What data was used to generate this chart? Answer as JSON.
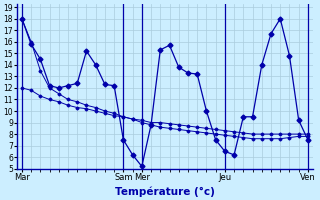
{
  "background_color": "#cceeff",
  "grid_color": "#aaccdd",
  "line_color": "#0000aa",
  "xlabel": "Température (°c)",
  "ylim": [
    5,
    19
  ],
  "yticks": [
    5,
    6,
    7,
    8,
    9,
    10,
    11,
    12,
    13,
    14,
    15,
    16,
    17,
    18
  ],
  "x_tick_labels": [
    "Mar",
    "Sam",
    "Mer",
    "Jeu",
    "Ven"
  ],
  "x_tick_positions": [
    0,
    11,
    13,
    22,
    31
  ],
  "n_points": 32,
  "series1": [
    18,
    15.8,
    14.5,
    12.2,
    12.0,
    12.2,
    12.4,
    15.2,
    14.0,
    12.3,
    12.2,
    7.5,
    6.2,
    5.2,
    8.8,
    15.3,
    15.7,
    13.8,
    13.3,
    13.2,
    10.0,
    7.5,
    6.5,
    6.2,
    9.5,
    9.5,
    14.0,
    16.7,
    18.0,
    14.8,
    9.2,
    7.5
  ],
  "series2": [
    18.0,
    16.0,
    13.5,
    12.0,
    11.5,
    11.0,
    10.8,
    10.5,
    10.3,
    10.0,
    9.8,
    9.5,
    9.3,
    9.0,
    8.8,
    8.6,
    8.5,
    8.4,
    8.3,
    8.2,
    8.1,
    8.0,
    7.9,
    7.8,
    7.7,
    7.6,
    7.6,
    7.6,
    7.6,
    7.7,
    7.8,
    7.8
  ],
  "series3": [
    12.0,
    11.8,
    11.3,
    11.0,
    10.8,
    10.5,
    10.3,
    10.2,
    10.0,
    9.8,
    9.6,
    9.5,
    9.3,
    9.2,
    9.0,
    9.0,
    8.9,
    8.8,
    8.7,
    8.6,
    8.5,
    8.4,
    8.3,
    8.2,
    8.1,
    8.0,
    8.0,
    8.0,
    8.0,
    8.0,
    8.0,
    8.0
  ]
}
